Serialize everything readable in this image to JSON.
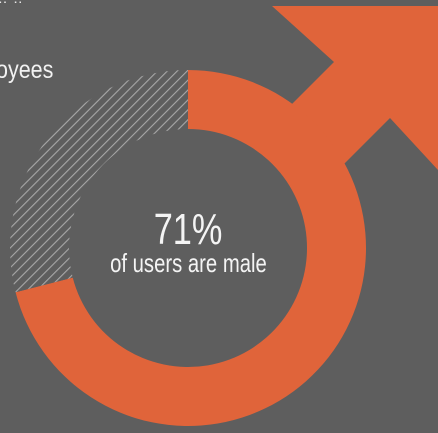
{
  "heading": "oyees",
  "top_fragment": "‥ ‥",
  "colors": {
    "background": "#5e5e5e",
    "male": "#e0643a",
    "other": "#a8a8a8",
    "text": "#f2f2f2"
  },
  "chart_data": {
    "type": "pie",
    "style": "donut",
    "categories": [
      "male",
      "not male"
    ],
    "values": [
      71,
      29
    ],
    "unit": "%",
    "data_label": "71%",
    "annotation": "of users are male",
    "decoration": "male-symbol-arrow-icon"
  }
}
